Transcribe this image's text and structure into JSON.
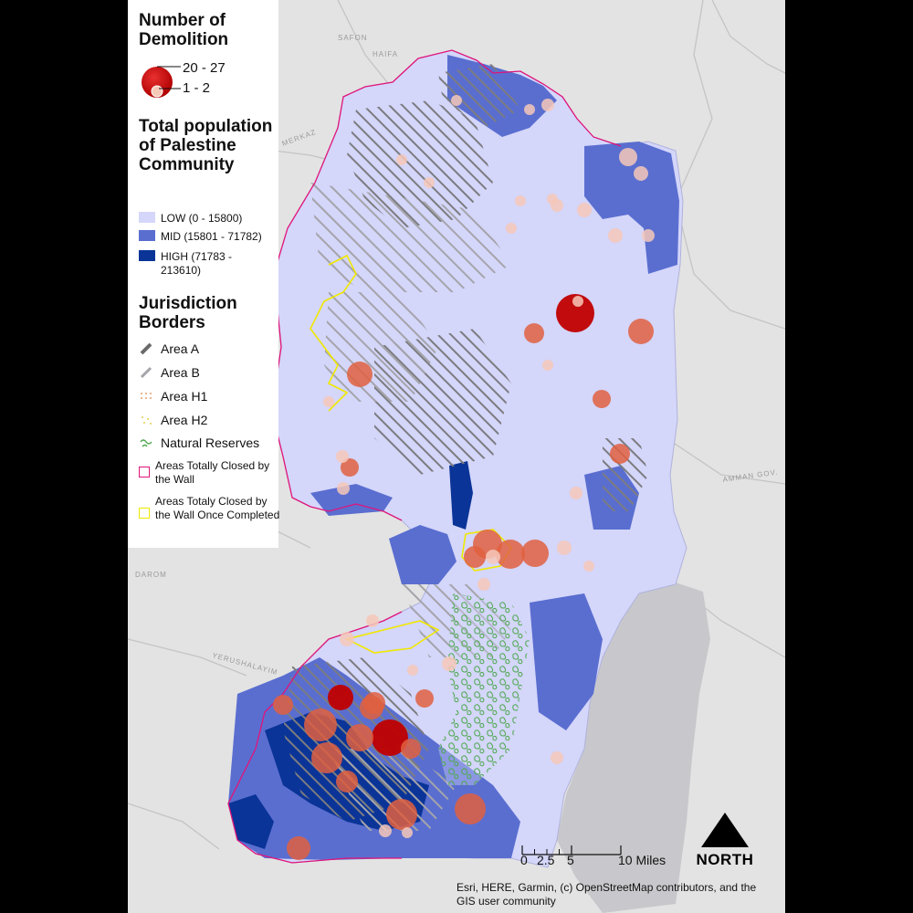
{
  "legend": {
    "demolition_title": "Number of Demolition",
    "demolition_high": "20 - 27",
    "demolition_low": "1 - 2",
    "population_title": "Total population of Palestine Community",
    "population_classes": [
      {
        "label": "LOW (0 - 15800)",
        "color": "#d4d6fa"
      },
      {
        "label": "MID (15801 - 71782)",
        "color": "#5a6ed0"
      },
      {
        "label": "HIGH (71783 - 213610)",
        "color": "#0a3497"
      }
    ],
    "jurisdiction_title": "Jurisdiction Borders",
    "jurisdiction_items": [
      {
        "label": "Area A",
        "icon": "dark-hatch"
      },
      {
        "label": "Area B",
        "icon": "light-hatch"
      },
      {
        "label": "Area H1",
        "icon": "orange-dots"
      },
      {
        "label": "Area H2",
        "icon": "yellow-dots"
      },
      {
        "label": "Natural Reserves",
        "icon": "green-pattern"
      },
      {
        "label": "Areas Totally Closed by the Wall",
        "color": "#e0147a"
      },
      {
        "label": "Areas Totaly Closed by the Wall Once Completed",
        "color": "#f0e800"
      }
    ]
  },
  "basemap_labels": {
    "safon": "SAFON",
    "haifa": "HAIFA",
    "merkaz": "MERKAZ",
    "darom": "DAROM",
    "yerushalayim": "YERUSHALAYIM",
    "amman": "AMMAN GOV."
  },
  "scale": {
    "ticks": [
      "0",
      "2.5",
      "5",
      "10 Miles"
    ]
  },
  "north": "NORTH",
  "credits": "Esri, HERE, Garmin, (c) OpenStreetMap contributors, and the GIS user community",
  "colors": {
    "background": "#e3e3e3",
    "low": "#d4d6fa",
    "mid": "#5a6ed0",
    "high": "#0a3497",
    "wall_closed": "#e0147a",
    "wall_planned": "#f0e800",
    "dead_sea": "#c8c8cc",
    "demolition_max": "#c00000",
    "demolition_mid": "#e06040",
    "demolition_min": "#f6c8b8"
  }
}
